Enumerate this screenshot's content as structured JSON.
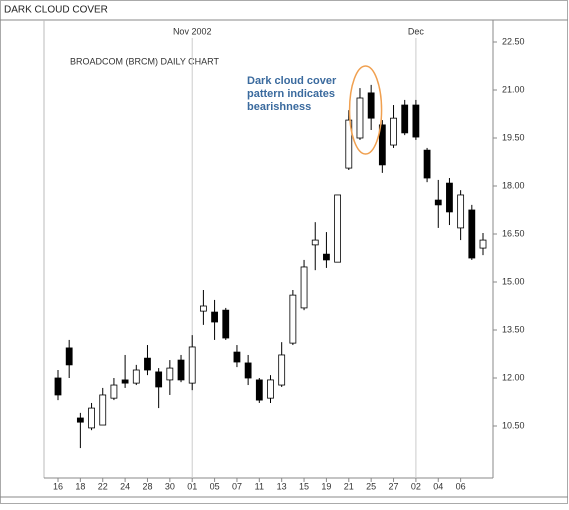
{
  "chart_data": {
    "type": "candlestick",
    "title": "DARK CLOUD COVER",
    "subtitle": "BROADCOM (BRCM) DAILY CHART",
    "annotation": [
      "Dark cloud cover",
      "pattern indicates",
      "bearishness"
    ],
    "markers": [
      {
        "label": "Nov 2002",
        "at": "01"
      },
      {
        "label": "Dec",
        "at": "02"
      }
    ],
    "categories": [
      "16",
      null,
      "18",
      null,
      "22",
      null,
      "24",
      null,
      "28",
      null,
      "30",
      null,
      "01",
      null,
      "05",
      null,
      "07",
      null,
      "11",
      null,
      "13",
      null,
      "15",
      null,
      "19",
      null,
      "21",
      null,
      "25",
      null,
      "27",
      null,
      "02",
      null,
      "04",
      null,
      "06",
      null,
      null
    ],
    "series": [
      {
        "up_color": "#ffffff",
        "down_color": "#000000",
        "open": [
          12.0,
          12.94,
          10.75,
          10.44,
          10.53,
          11.37,
          11.94,
          11.84,
          12.62,
          12.19,
          11.94,
          12.56,
          11.84,
          14.09,
          14.06,
          14.12,
          12.81,
          12.47,
          11.94,
          11.37,
          11.78,
          13.09,
          14.19,
          16.16,
          15.87,
          15.62,
          18.56,
          19.5,
          20.91,
          19.91,
          19.28,
          20.53,
          20.53,
          19.12,
          17.56,
          18.09,
          16.69,
          17.25,
          16.06
        ],
        "high": [
          12.25,
          13.19,
          10.91,
          11.22,
          11.69,
          12.0,
          12.72,
          12.41,
          13.03,
          12.31,
          12.56,
          12.72,
          13.34,
          14.75,
          14.44,
          14.19,
          13.03,
          12.72,
          12.0,
          12.09,
          13.12,
          14.75,
          15.69,
          16.87,
          16.56,
          17.72,
          20.37,
          21.06,
          21.16,
          20.06,
          20.53,
          20.69,
          20.69,
          19.19,
          18.19,
          18.25,
          17.87,
          17.41,
          16.53
        ],
        "low": [
          11.31,
          12.0,
          9.81,
          10.37,
          10.53,
          11.31,
          11.69,
          11.78,
          12.09,
          11.06,
          11.47,
          11.87,
          11.62,
          13.66,
          13.19,
          13.19,
          12.34,
          11.78,
          11.22,
          11.22,
          11.72,
          13.03,
          14.12,
          15.37,
          15.44,
          15.62,
          18.5,
          19.44,
          19.75,
          18.41,
          19.19,
          19.59,
          19.44,
          18.12,
          16.69,
          16.78,
          16.31,
          15.69,
          15.84
        ],
        "close": [
          11.47,
          12.41,
          10.62,
          11.06,
          11.47,
          11.78,
          11.84,
          12.25,
          12.25,
          11.72,
          12.31,
          11.94,
          12.97,
          14.25,
          13.75,
          13.25,
          12.5,
          12.0,
          11.31,
          11.94,
          12.72,
          14.59,
          15.47,
          16.31,
          15.69,
          17.72,
          20.06,
          20.75,
          20.12,
          18.66,
          20.12,
          19.66,
          19.53,
          18.25,
          17.41,
          17.19,
          17.72,
          15.75,
          16.31
        ]
      }
    ],
    "ylim": [
      8.875,
      22.875
    ],
    "yticks": [
      {
        "value": 10.5,
        "label": "10.50"
      },
      {
        "value": 12,
        "label": "12.00"
      },
      {
        "value": 13.5,
        "label": "13.50"
      },
      {
        "value": 15,
        "label": "15.00"
      },
      {
        "value": 16.5,
        "label": "16.50"
      },
      {
        "value": 18,
        "label": "18.00"
      },
      {
        "value": 19.5,
        "label": "19.50"
      },
      {
        "value": 21,
        "label": "21.00"
      },
      {
        "value": 22.5,
        "label": "22.50"
      }
    ],
    "annotation_color": "#3a6a9e",
    "highlight_color": "#f0a050"
  }
}
